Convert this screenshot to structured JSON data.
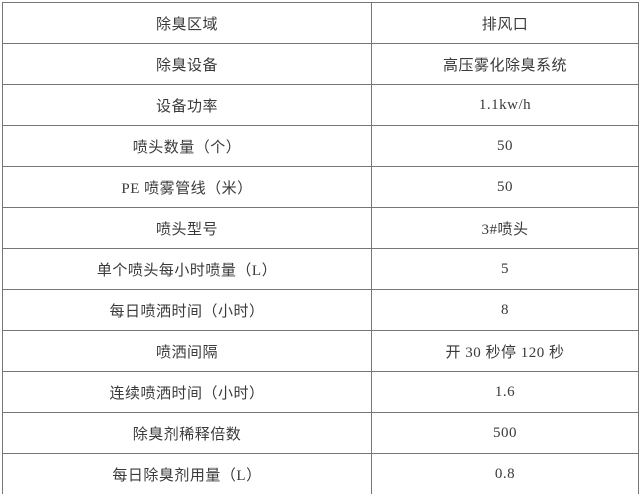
{
  "colors": {
    "background": "#ffffff",
    "border": "#767676",
    "text": "#3a3a3a"
  },
  "table": {
    "rows": [
      {
        "label": "除臭区域",
        "value": "排风口"
      },
      {
        "label": "除臭设备",
        "value": "高压雾化除臭系统"
      },
      {
        "label": "设备功率",
        "value": "1.1kw/h"
      },
      {
        "label": "喷头数量（个）",
        "value": "50"
      },
      {
        "label": "PE 喷雾管线（米）",
        "value": "50"
      },
      {
        "label": "喷头型号",
        "value": "3#喷头"
      },
      {
        "label": "单个喷头每小时喷量（L）",
        "value": "5"
      },
      {
        "label": "每日喷洒时间（小时）",
        "value": "8"
      },
      {
        "label": "喷洒间隔",
        "value": "开 30 秒停 120 秒"
      },
      {
        "label": "连续喷洒时间（小时）",
        "value": "1.6"
      },
      {
        "label": "除臭剂稀释倍数",
        "value": "500"
      },
      {
        "label": "每日除臭剂用量（L）",
        "value": "0.8"
      }
    ]
  }
}
